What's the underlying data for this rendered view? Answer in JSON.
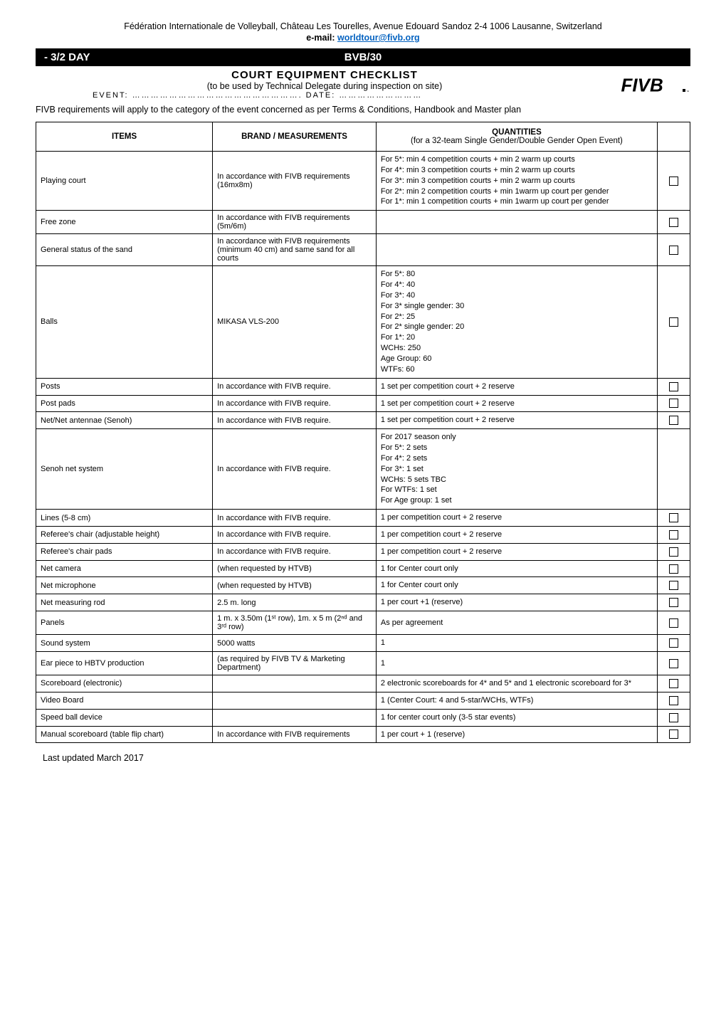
{
  "org_header": "Fédération Internationale de Volleyball, Château Les Tourelles, Avenue Edouard Sandoz 2-4 1006 Lausanne, Switzerland",
  "email_label": "e-mail: ",
  "email_link": "worldtour@fivb.org",
  "title_bar": {
    "left": "- 3/2 DAY",
    "mid": "BVB/30"
  },
  "checklist_title": "COURT EQUIPMENT CHECKLIST",
  "subtitle": "(to be used by Technical Delegate during inspection on site)",
  "event_line": "EVENT: ……………………………………………….  DATE: ………………………",
  "logo_text": "FIVB.",
  "intro_text": "FIVB requirements will apply to the category of the event concerned as per Terms & Conditions, Handbook and Master plan",
  "table": {
    "headers": {
      "items": "ITEMS",
      "brand": "BRAND / MEASUREMENTS",
      "quantities_line1": "QUANTITIES",
      "quantities_line2": "(for a 32-team Single Gender/Double Gender Open Event)"
    },
    "rows": [
      {
        "item": "Playing court",
        "brand": "In accordance with FIVB requirements (16mx8m)",
        "qty": "For 5*: min 4 competition courts + min 2 warm up courts\nFor 4*: min 3 competition courts + min 2 warm up courts\nFor 3*: min 3 competition courts + min 2 warm up courts\nFor 2*: min 2 competition courts + min 1warm up court per gender\nFor 1*: min 1 competition courts + min 1warm up court per gender",
        "check": true
      },
      {
        "item": "Free zone",
        "brand": "In accordance with FIVB requirements (5m/6m)",
        "qty": "",
        "check": true
      },
      {
        "item": "General status of the sand",
        "brand": "In accordance with FIVB requirements (minimum 40 cm) and same sand for all courts",
        "qty": "",
        "check": true
      },
      {
        "item": "Balls",
        "brand": "MIKASA VLS-200",
        "qty": "For 5*: 80\nFor 4*: 40\nFor 3*: 40\nFor 3* single gender: 30\nFor 2*: 25\nFor 2* single gender: 20\nFor 1*: 20\nWCHs: 250\nAge Group: 60\nWTFs: 60",
        "check": true
      },
      {
        "item": "Posts",
        "brand": "In accordance with FIVB require.",
        "qty": "1 set per competition court + 2 reserve",
        "check": true
      },
      {
        "item": "Post pads",
        "brand": "In accordance with FIVB require.",
        "qty": "1 set per competition court + 2 reserve",
        "check": true
      },
      {
        "item": "Net/Net antennae (Senoh)",
        "brand": "In accordance with FIVB require.",
        "qty": "1 set per competition court + 2 reserve",
        "check": true
      },
      {
        "item": "Senoh net system",
        "brand": "In accordance with FIVB require.",
        "qty": "For 2017 season only\nFor 5*: 2 sets\nFor 4*: 2 sets\nFor 3*: 1 set\nWCHs: 5 sets TBC\nFor WTFs: 1 set\nFor Age group: 1 set",
        "check": false
      },
      {
        "item": "Lines (5-8 cm)",
        "brand": "In accordance with FIVB require.",
        "qty": "1 per competition court + 2 reserve",
        "check": true
      },
      {
        "item": "Referee's chair (adjustable height)",
        "brand": "In accordance with FIVB require.",
        "qty": "1 per competition court + 2 reserve",
        "check": true
      },
      {
        "item": "Referee's chair pads",
        "brand": "In accordance with FIVB require.",
        "qty": "1 per competition court + 2 reserve",
        "check": true
      },
      {
        "item": "Net camera",
        "brand": "(when requested by HTVB)",
        "qty": "1 for Center court only",
        "check": true
      },
      {
        "item": "Net microphone",
        "brand": "(when requested by HTVB)",
        "qty": "1 for Center court only",
        "check": true
      },
      {
        "item": "Net measuring rod",
        "brand": "2.5 m. long",
        "qty": "1 per court +1 (reserve)",
        "check": true
      },
      {
        "item": "Panels",
        "brand": "1 m. x 3.50m (1ˢᵗ row), 1m. x 5 m (2ⁿᵈ and 3ʳᵈ row)",
        "qty": "As per agreement",
        "check": true
      },
      {
        "item": "Sound system",
        "brand": "5000 watts",
        "qty": "1",
        "check": true
      },
      {
        "item": "Ear piece to HBTV production",
        "brand": "(as required by FIVB TV & Marketing Department)",
        "qty": "1",
        "check": true
      },
      {
        "item": "Scoreboard (electronic)",
        "brand": "",
        "qty": "2 electronic scoreboards for 4* and 5* and 1 electronic scoreboard for 3*",
        "check": true
      },
      {
        "item": "Video Board",
        "brand": "",
        "qty": "1 (Center Court: 4 and 5-star/WCHs, WTFs)",
        "check": true
      },
      {
        "item": "Speed ball device",
        "brand": "",
        "qty": "1 for center court only (3-5 star events)",
        "check": true
      },
      {
        "item": "Manual scoreboard (table flip chart)",
        "brand": "In accordance with FIVB requirements",
        "qty": "1 per court + 1 (reserve)",
        "check": true
      }
    ]
  },
  "footer": "Last updated March 2017"
}
